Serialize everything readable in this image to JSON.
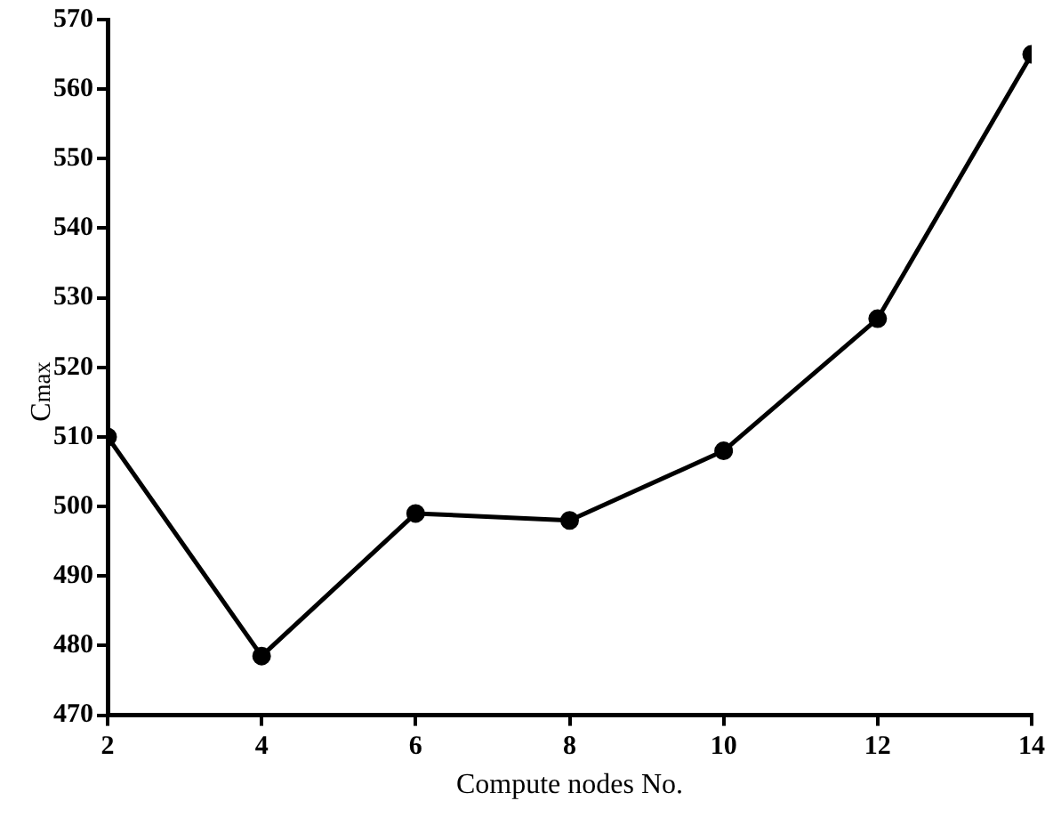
{
  "chart_data": {
    "type": "line",
    "xlabel": "Compute nodes No.",
    "ylabel": "C$_{max}$",
    "x": [
      2,
      4,
      6,
      8,
      10,
      12,
      14
    ],
    "series": [
      {
        "color": "#000000",
        "values": [
          510,
          478.5,
          499,
          498,
          508,
          527,
          565
        ]
      }
    ],
    "xlim": [
      2,
      14
    ],
    "xticks": [
      2,
      4,
      6,
      8,
      10,
      12,
      14
    ],
    "ylim": [
      470,
      570
    ],
    "yticks": [
      470,
      480,
      490,
      500,
      510,
      520,
      530,
      540,
      550,
      560,
      570
    ],
    "grid": false,
    "legend": false,
    "marker": "circle",
    "line_style": "solid"
  }
}
